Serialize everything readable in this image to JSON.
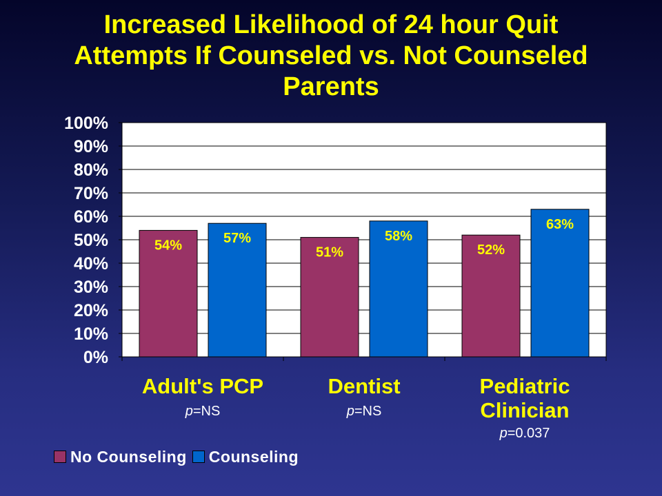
{
  "slide": {
    "title_lines": [
      "Increased Likelihood of 24 hour Quit",
      "Attempts If Counseled vs. Not Counseled",
      "Parents"
    ]
  },
  "chart_data": {
    "type": "bar",
    "title": "Increased Likelihood of 24 hour Quit Attempts If Counseled vs. Not Counseled Parents",
    "categories": [
      "Adult's PCP",
      "Dentist",
      "Pediatric Clinician"
    ],
    "category_lines": [
      [
        "Adult's PCP"
      ],
      [
        "Dentist"
      ],
      [
        "Pediatric",
        "Clinician"
      ]
    ],
    "p_values": [
      "NS",
      "NS",
      "0.037"
    ],
    "p_prefix": "p",
    "series": [
      {
        "name": "No Counseling",
        "values": [
          54,
          51,
          52
        ],
        "labels": [
          "54%",
          "51%",
          "52%"
        ],
        "color": "#993366"
      },
      {
        "name": "Counseling",
        "values": [
          57,
          58,
          63
        ],
        "labels": [
          "57%",
          "58%",
          "63%"
        ],
        "color": "#0066cc"
      }
    ],
    "y_ticks": [
      "0%",
      "10%",
      "20%",
      "30%",
      "40%",
      "50%",
      "60%",
      "70%",
      "80%",
      "90%",
      "100%"
    ],
    "ylim": [
      0,
      100
    ],
    "grid": true,
    "legend_position": "bottom-left",
    "colors": {
      "title": "#ffff00",
      "data_label": "#ffff00",
      "tick_label": "#ffffff",
      "plot_bg": "#ffffff"
    }
  }
}
